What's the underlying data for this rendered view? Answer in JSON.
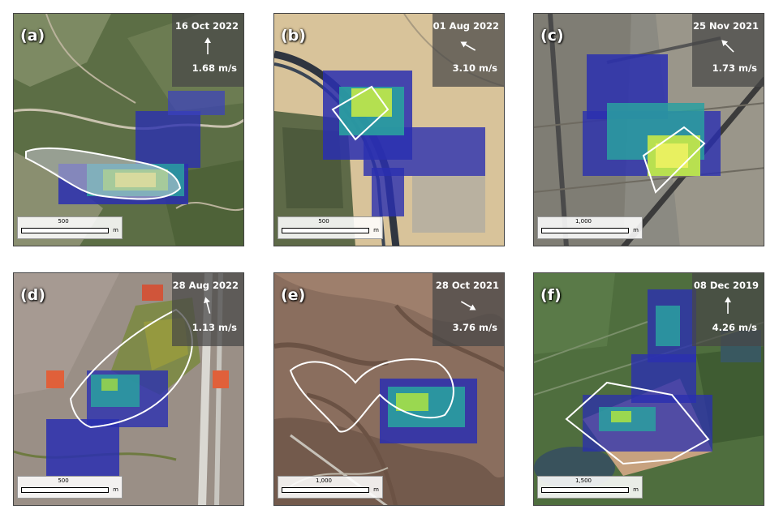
{
  "panels": [
    {
      "label": "(a)",
      "date": "16 Oct 2022",
      "speed": "1.68 m/s",
      "scale_label": "500",
      "scale_unit": "m",
      "wind_direction_deg": 0
    },
    {
      "label": "(b)",
      "date": "01 Aug 2022",
      "speed": "3.10 m/s",
      "scale_label": "500",
      "scale_unit": "m",
      "wind_direction_deg": 300
    },
    {
      "label": "(c)",
      "date": "25 Nov 2021",
      "speed": "1.73 m/s",
      "scale_label": "1,000",
      "scale_unit": "m",
      "wind_direction_deg": 315
    },
    {
      "label": "(d)",
      "date": "28 Aug 2022",
      "speed": "1.13 m/s",
      "scale_label": "500",
      "scale_unit": "m",
      "wind_direction_deg": 345
    },
    {
      "label": "(e)",
      "date": "28 Oct 2021",
      "speed": "3.76 m/s",
      "scale_label": "1,000",
      "scale_unit": "m",
      "wind_direction_deg": 120
    },
    {
      "label": "(f)",
      "date": "08 Dec 2019",
      "speed": "4.26 m/s",
      "scale_label": "1,500",
      "scale_unit": "m",
      "wind_direction_deg": 0
    }
  ],
  "colors": {
    "plume_low": "#2a2fb0",
    "plume_mid": "#2aa0a0",
    "plume_high": "#e8f060",
    "outline": "#ffffff"
  }
}
